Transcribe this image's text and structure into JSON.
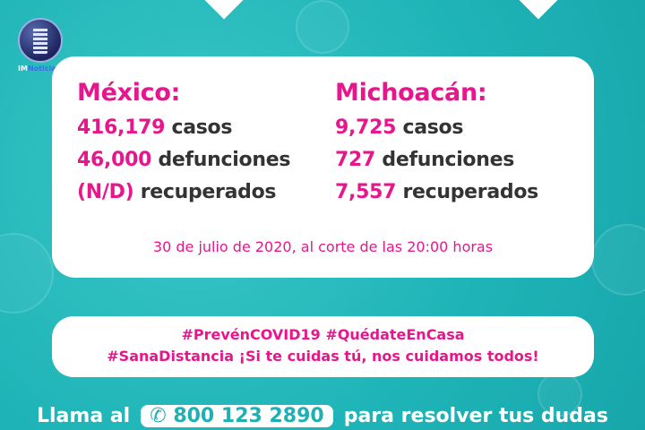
{
  "logo": {
    "text_a": "IM",
    "text_b": "Noticias"
  },
  "mexico": {
    "title": "México:",
    "cases_num": "416,179",
    "cases_label": "casos",
    "deaths_num": "46,000",
    "deaths_label": "defunciones",
    "recovered_num": "(N/D)",
    "recovered_label": "recuperados"
  },
  "michoacan": {
    "title": "Michoacán:",
    "cases_num": "9,725",
    "cases_label": "casos",
    "deaths_num": "727",
    "deaths_label": "defunciones",
    "recovered_num": "7,557",
    "recovered_label": "recuperados"
  },
  "date": "30 de julio de 2020, al corte de las 20:00 horas",
  "hashtags": {
    "line1": "#PrevénCOVID19 #QuédateEnCasa",
    "line2": "#SanaDistancia ¡Si te cuidas tú, nos cuidamos todos!"
  },
  "footer": {
    "pre": "Llama al",
    "phone": "800 123 2890",
    "post": "para resolver tus dudas",
    "phone_icon": "phone-icon"
  },
  "colors": {
    "teal": "#1fb5b8",
    "magenta": "#e6168c"
  }
}
